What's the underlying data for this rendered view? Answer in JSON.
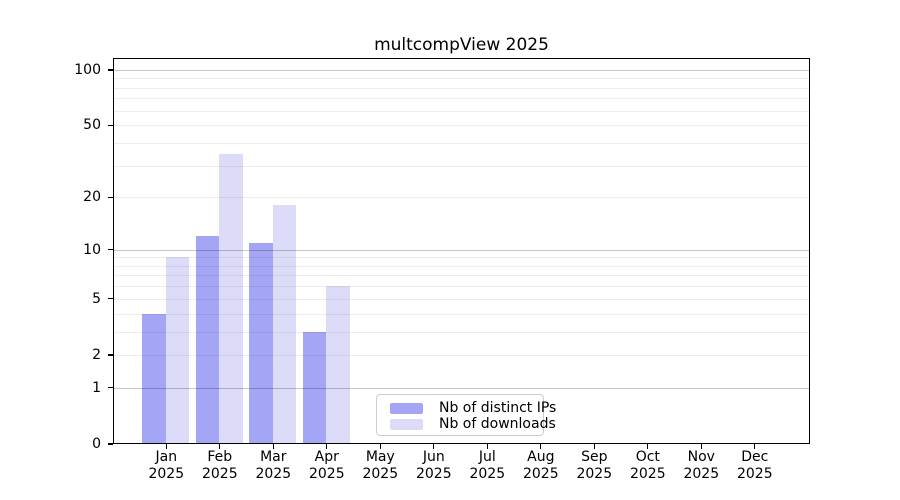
{
  "title": "multcompView 2025",
  "colors": {
    "distinct_ips": "#a5a5f5",
    "downloads": "#dcdcf8",
    "grid_major": "rgba(0,0,0,0.22)",
    "grid_minor": "rgba(0,0,0,0.07)",
    "axis": "#000000",
    "legend_border": "#cccccc"
  },
  "legend": [
    {
      "label": "Nb of distinct IPs",
      "color_key": "distinct_ips"
    },
    {
      "label": "Nb of downloads",
      "color_key": "downloads"
    }
  ],
  "chart_data": {
    "type": "bar",
    "title": "multcompView 2025",
    "categories": [
      "Jan 2025",
      "Feb 2025",
      "Mar 2025",
      "Apr 2025",
      "May 2025",
      "Jun 2025",
      "Jul 2025",
      "Aug 2025",
      "Sep 2025",
      "Oct 2025",
      "Nov 2025",
      "Dec 2025"
    ],
    "series": [
      {
        "name": "Nb of distinct IPs",
        "values": [
          4,
          12,
          11,
          3,
          0,
          0,
          0,
          0,
          0,
          0,
          0,
          0
        ]
      },
      {
        "name": "Nb of downloads",
        "values": [
          9,
          35,
          18,
          6,
          0,
          0,
          0,
          0,
          0,
          0,
          0,
          0
        ]
      }
    ],
    "xlabel": "",
    "ylabel": "",
    "yscale": "log1p",
    "ylim": [
      0,
      116
    ],
    "ylim_top": 116,
    "yticks": [
      0,
      1,
      2,
      5,
      10,
      20,
      50,
      100
    ],
    "grid_major": [
      1,
      10,
      100
    ],
    "grid_minor": [
      2,
      3,
      4,
      5,
      6,
      7,
      8,
      9,
      20,
      30,
      40,
      50,
      60,
      70,
      80,
      90
    ],
    "grid": "horizontal",
    "legend_position": "lower center"
  }
}
